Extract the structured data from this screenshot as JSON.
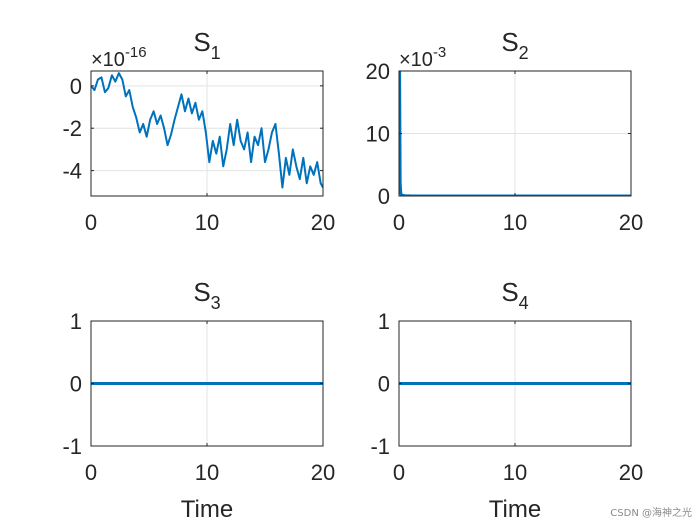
{
  "watermark": "CSDN @海神之光",
  "chart_data": [
    {
      "type": "line",
      "title": "S",
      "title_subscript": "1",
      "xlabel": "",
      "exponent_base": "×10",
      "exponent_power": "-16",
      "xlim": [
        0,
        20
      ],
      "ylim": [
        -5.2,
        0.7
      ],
      "xticks": [
        "0",
        "10",
        "20"
      ],
      "yticks": [
        "0",
        "-2",
        "-4"
      ],
      "grid": true,
      "color": "#0072BD",
      "x": [
        0,
        0.3,
        0.6,
        0.9,
        1.2,
        1.5,
        1.8,
        2.1,
        2.4,
        2.7,
        3.0,
        3.3,
        3.6,
        3.9,
        4.2,
        4.5,
        4.8,
        5.1,
        5.4,
        5.7,
        6.0,
        6.3,
        6.6,
        6.9,
        7.2,
        7.5,
        7.8,
        8.1,
        8.4,
        8.7,
        9.0,
        9.3,
        9.6,
        9.9,
        10.2,
        10.5,
        10.8,
        11.1,
        11.4,
        11.7,
        12.0,
        12.3,
        12.6,
        12.9,
        13.2,
        13.5,
        13.8,
        14.1,
        14.4,
        14.7,
        15.0,
        15.3,
        15.6,
        15.9,
        16.2,
        16.5,
        16.8,
        17.1,
        17.4,
        17.7,
        18.0,
        18.3,
        18.6,
        18.9,
        19.2,
        19.5,
        19.8,
        20.0
      ],
      "y": [
        0,
        -0.2,
        0.3,
        0.4,
        -0.3,
        -0.1,
        0.5,
        0.2,
        0.6,
        0.3,
        -0.5,
        -0.2,
        -1.0,
        -1.5,
        -2.2,
        -1.8,
        -2.4,
        -1.6,
        -1.2,
        -1.8,
        -1.4,
        -2.0,
        -2.8,
        -2.3,
        -1.6,
        -1.0,
        -0.4,
        -1.2,
        -0.6,
        -1.3,
        -0.8,
        -1.6,
        -1.2,
        -2.2,
        -3.6,
        -2.6,
        -3.2,
        -2.4,
        -3.8,
        -3.0,
        -1.8,
        -2.8,
        -1.6,
        -2.6,
        -3.0,
        -2.2,
        -3.6,
        -2.4,
        -2.8,
        -2.0,
        -3.6,
        -3.0,
        -2.2,
        -1.8,
        -3.2,
        -4.8,
        -3.4,
        -4.2,
        -3.0,
        -3.8,
        -4.4,
        -3.4,
        -4.6,
        -3.8,
        -4.2,
        -3.6,
        -4.6,
        -4.8
      ]
    },
    {
      "type": "line",
      "title": "S",
      "title_subscript": "2",
      "xlabel": "",
      "exponent_base": "×10",
      "exponent_power": "-3",
      "xlim": [
        0,
        20
      ],
      "ylim": [
        0,
        20
      ],
      "xticks": [
        "0",
        "10",
        "20"
      ],
      "yticks": [
        "20",
        "10",
        "0"
      ],
      "grid": true,
      "color": "#0072BD",
      "x": [
        0,
        0.05,
        0.1,
        0.15,
        0.2,
        0.3,
        0.5,
        1,
        2,
        5,
        10,
        15,
        20
      ],
      "y": [
        12,
        20,
        2,
        0.5,
        0.2,
        0.1,
        0.05,
        0.02,
        0.01,
        0,
        0,
        0,
        0
      ]
    },
    {
      "type": "line",
      "title": "S",
      "title_subscript": "3",
      "xlabel": "Time",
      "xlim": [
        0,
        20
      ],
      "ylim": [
        -1,
        1
      ],
      "xticks": [
        "0",
        "10",
        "20"
      ],
      "yticks": [
        "1",
        "0",
        "-1"
      ],
      "grid": true,
      "color": "#0072BD",
      "x": [
        0,
        20
      ],
      "y": [
        0,
        0
      ]
    },
    {
      "type": "line",
      "title": "S",
      "title_subscript": "4",
      "xlabel": "Time",
      "xlim": [
        0,
        20
      ],
      "ylim": [
        -1,
        1
      ],
      "xticks": [
        "0",
        "10",
        "20"
      ],
      "yticks": [
        "1",
        "0",
        "-1"
      ],
      "grid": true,
      "color": "#0072BD",
      "x": [
        0,
        20
      ],
      "y": [
        0,
        0
      ]
    }
  ]
}
